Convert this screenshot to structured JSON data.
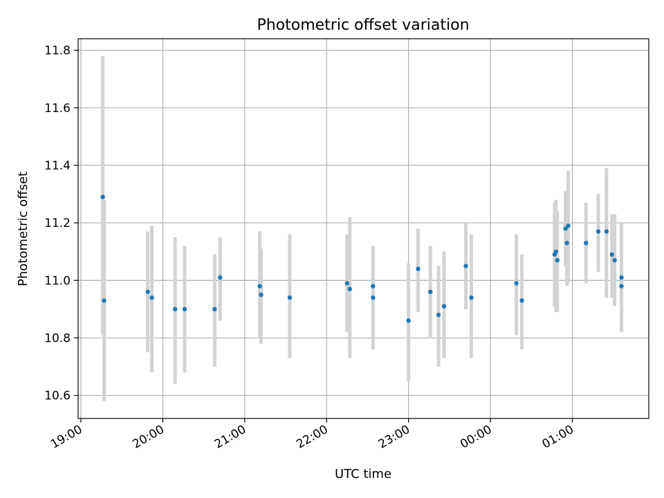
{
  "chart_data": {
    "type": "scatter",
    "title": "Photometric offset variation",
    "xlabel": "UTC time",
    "ylabel": "Photometric offset",
    "grid": true,
    "x_unit": "UTC clock time (HH:MM), run crosses midnight",
    "xlim": [
      "18:58",
      "01:56"
    ],
    "ylim": [
      10.52,
      11.84
    ],
    "xticks": [
      "19:00",
      "20:00",
      "21:00",
      "22:00",
      "23:00",
      "00:00",
      "01:00"
    ],
    "yticks": [
      "10.6",
      "10.8",
      "11.0",
      "11.2",
      "11.4",
      "11.6",
      "11.8"
    ],
    "colors": {
      "points": "#1f77b4",
      "error_bars": "#d3d3d3",
      "grid": "#b0b0b0"
    },
    "series": [
      {
        "x": [
          "19:16",
          "19:17",
          "19:49",
          "19:52",
          "20:09",
          "20:16",
          "20:38",
          "20:42",
          "21:11",
          "21:12",
          "21:33",
          "22:15",
          "22:17",
          "22:34",
          "22:34",
          "23:00",
          "23:07",
          "23:16",
          "23:22",
          "23:26",
          "23:42",
          "23:46",
          "00:19",
          "00:23",
          "00:47",
          "00:48",
          "00:49",
          "00:55",
          "00:56",
          "00:57",
          "01:10",
          "01:19",
          "01:25",
          "01:29",
          "01:31",
          "01:36",
          "01:36"
        ],
        "y": [
          11.29,
          10.93,
          10.96,
          10.94,
          10.9,
          10.9,
          10.9,
          11.01,
          10.98,
          10.95,
          10.94,
          10.99,
          10.97,
          10.98,
          10.94,
          10.86,
          11.04,
          10.96,
          10.88,
          10.91,
          11.05,
          10.94,
          10.99,
          10.93,
          11.09,
          11.1,
          11.07,
          11.18,
          11.13,
          11.19,
          11.13,
          11.17,
          11.17,
          11.09,
          11.07,
          11.01,
          10.98
        ],
        "y_lower": [
          10.81,
          10.58,
          10.75,
          10.68,
          10.64,
          10.68,
          10.7,
          10.86,
          10.8,
          10.78,
          10.73,
          10.82,
          10.73,
          10.76,
          10.76,
          10.65,
          10.89,
          10.8,
          10.7,
          10.73,
          10.9,
          10.73,
          10.81,
          10.76,
          10.91,
          10.89,
          10.89,
          11.05,
          10.98,
          10.99,
          10.99,
          11.03,
          10.94,
          10.94,
          10.91,
          10.82,
          10.82
        ],
        "y_upper": [
          11.78,
          11.28,
          11.17,
          11.19,
          11.15,
          11.12,
          11.09,
          11.15,
          11.17,
          11.11,
          11.16,
          11.16,
          11.22,
          11.12,
          11.11,
          11.06,
          11.18,
          11.12,
          11.05,
          11.1,
          11.2,
          11.16,
          11.16,
          11.09,
          11.27,
          11.28,
          11.24,
          11.31,
          11.28,
          11.38,
          11.27,
          11.3,
          11.39,
          11.23,
          11.23,
          11.14,
          11.2
        ]
      }
    ]
  }
}
